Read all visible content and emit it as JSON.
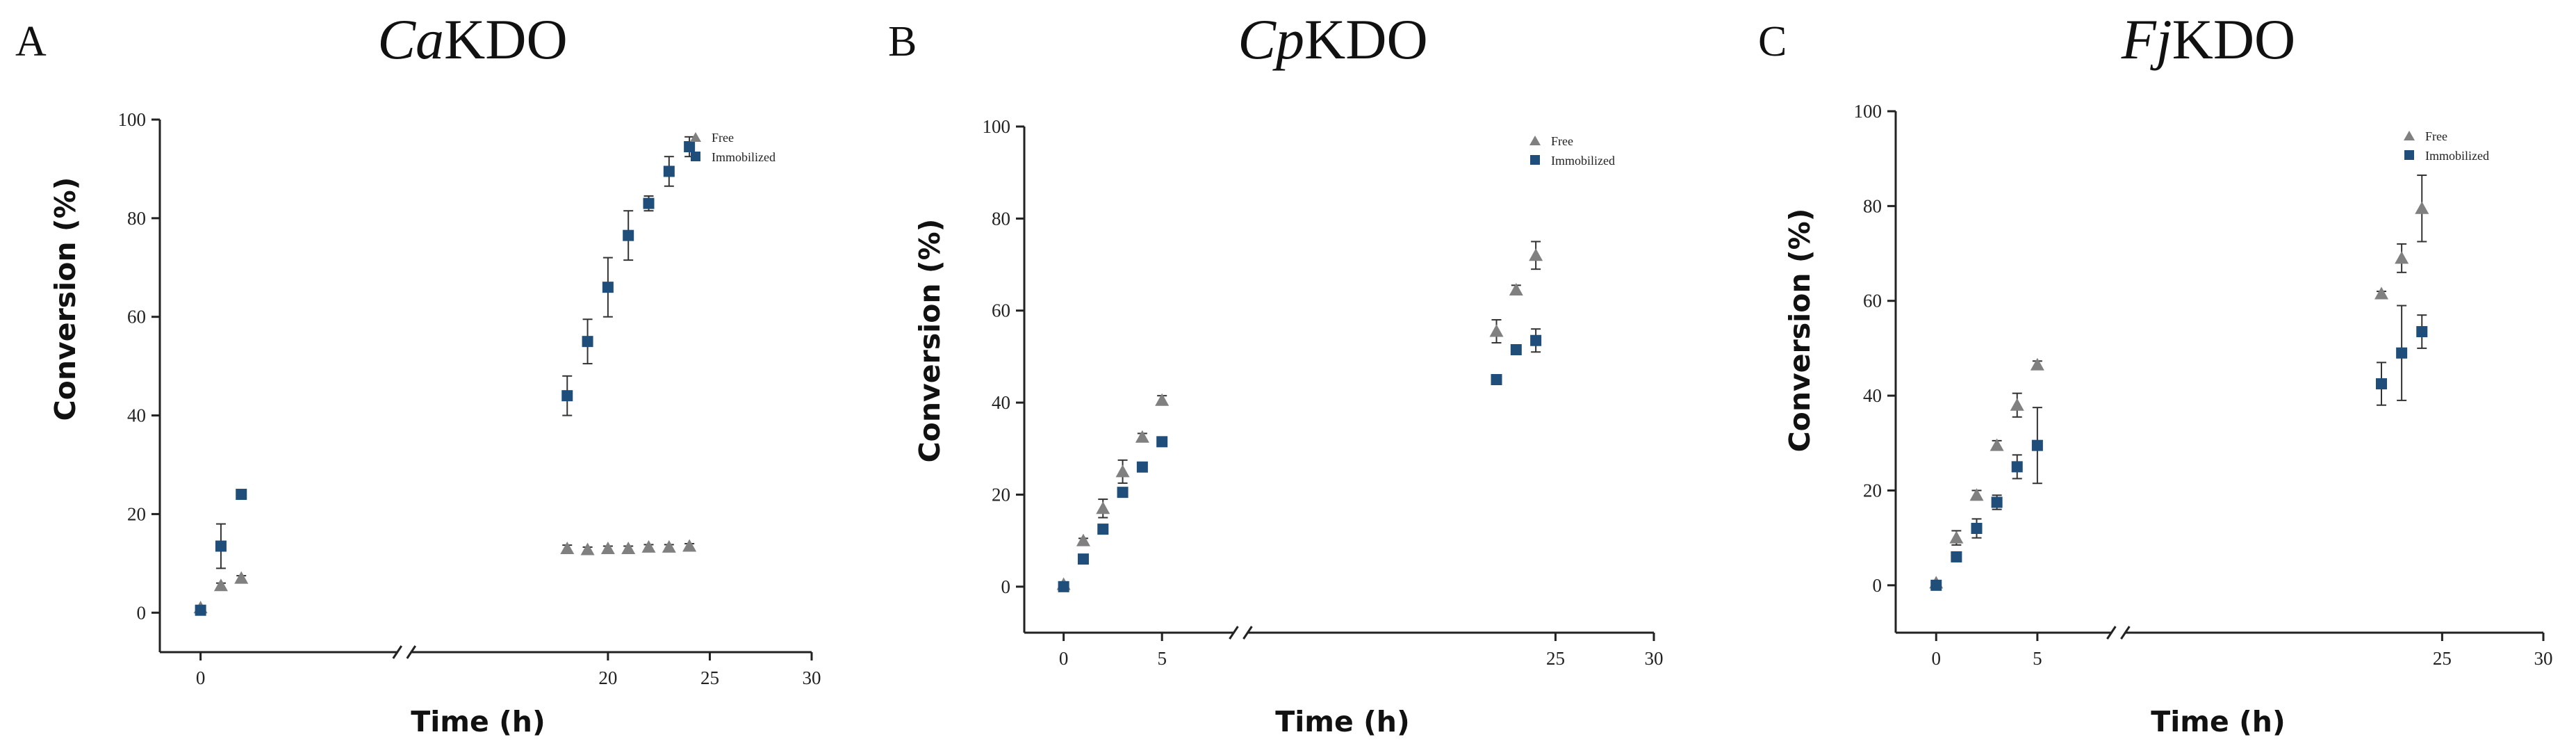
{
  "colors": {
    "free": "#808080",
    "immobilized": "#1f4e7a"
  },
  "chart_data": [
    {
      "panel": "A",
      "title_italic": "Ca",
      "title_rest": "KDO",
      "type": "scatter",
      "xlabel": "Time (h)",
      "ylabel": "Conversion (%)",
      "xlim": [
        -2,
        30
      ],
      "ylim": [
        -8,
        100
      ],
      "x_break": 10,
      "xticks": [
        "0",
        "20",
        "25",
        "30"
      ],
      "yticks": [
        "0",
        "20",
        "40",
        "60",
        "80",
        "100"
      ],
      "legend": [
        "Free",
        "Immobilized"
      ],
      "legend_position": "top-right",
      "series": [
        {
          "name": "Free",
          "marker": "triangle",
          "x": [
            0,
            1,
            2,
            18,
            19,
            20,
            21,
            22,
            23,
            24
          ],
          "y": [
            1,
            5.5,
            7,
            13,
            12.8,
            13,
            13,
            13.3,
            13.3,
            13.5
          ],
          "err": [
            0,
            0.5,
            0.5,
            0.7,
            0.5,
            0.5,
            0.5,
            0.5,
            0.5,
            0.5
          ]
        },
        {
          "name": "Immobilized",
          "marker": "square",
          "x": [
            0,
            1,
            2,
            18,
            19,
            20,
            21,
            22,
            23,
            24
          ],
          "y": [
            0.5,
            13.5,
            24,
            44,
            55,
            66,
            76.5,
            83,
            89.5,
            94.5
          ],
          "err": [
            0,
            4.5,
            0.5,
            4,
            4.5,
            6,
            5,
            1.5,
            3,
            2
          ]
        }
      ]
    },
    {
      "panel": "B",
      "title_italic": "Cp",
      "title_rest": "KDO",
      "type": "scatter",
      "xlabel": "Time (h)",
      "ylabel": "Conversion (%)",
      "xlim": [
        -2,
        30
      ],
      "ylim": [
        -10,
        100
      ],
      "x_break": 9,
      "xticks": [
        "0",
        "5",
        "25",
        "30"
      ],
      "yticks": [
        "0",
        "20",
        "40",
        "60",
        "80",
        "100"
      ],
      "legend": [
        "Free",
        "Immobilized"
      ],
      "legend_position": "top-right",
      "series": [
        {
          "name": "Free",
          "marker": "triangle",
          "x": [
            0,
            1,
            2,
            3,
            4,
            5,
            22,
            23,
            24
          ],
          "y": [
            0.5,
            10,
            17,
            25,
            32.5,
            40.5,
            55.5,
            64.5,
            72
          ],
          "err": [
            0,
            0.5,
            2,
            2.5,
            0.8,
            1,
            2.5,
            1,
            3
          ]
        },
        {
          "name": "Immobilized",
          "marker": "square",
          "x": [
            0,
            1,
            2,
            3,
            4,
            5,
            22,
            23,
            24
          ],
          "y": [
            0,
            6,
            12.5,
            20.5,
            26,
            31.5,
            45,
            51.5,
            53.5
          ],
          "err": [
            0,
            0.5,
            0.8,
            1,
            0.8,
            0.8,
            0.8,
            1,
            2.5
          ]
        }
      ]
    },
    {
      "panel": "C",
      "title_italic": "Fj",
      "title_rest": "KDO",
      "type": "scatter",
      "xlabel": "Time (h)",
      "ylabel": "Conversion (%)",
      "xlim": [
        -2,
        30
      ],
      "ylim": [
        -10,
        100
      ],
      "x_break": 9,
      "xticks": [
        "0",
        "5",
        "25",
        "30"
      ],
      "yticks": [
        "0",
        "20",
        "40",
        "60",
        "80",
        "100"
      ],
      "legend": [
        "Free",
        "Immobilized"
      ],
      "legend_position": "top-right",
      "series": [
        {
          "name": "Free",
          "marker": "triangle",
          "x": [
            0,
            1,
            2,
            3,
            4,
            5,
            22,
            23,
            24
          ],
          "y": [
            0.5,
            10,
            19,
            29.5,
            38,
            46.5,
            61.5,
            69,
            79.5
          ],
          "err": [
            0,
            1.5,
            1,
            1,
            2.5,
            0.8,
            0.5,
            3,
            7
          ]
        },
        {
          "name": "Immobilized",
          "marker": "square",
          "x": [
            0,
            1,
            2,
            3,
            4,
            5,
            22,
            23,
            24
          ],
          "y": [
            0,
            6,
            12,
            17.5,
            25,
            29.5,
            42.5,
            49,
            53.5
          ],
          "err": [
            0,
            1,
            2,
            1.5,
            2.5,
            8,
            4.5,
            10,
            3.5
          ]
        }
      ]
    }
  ]
}
